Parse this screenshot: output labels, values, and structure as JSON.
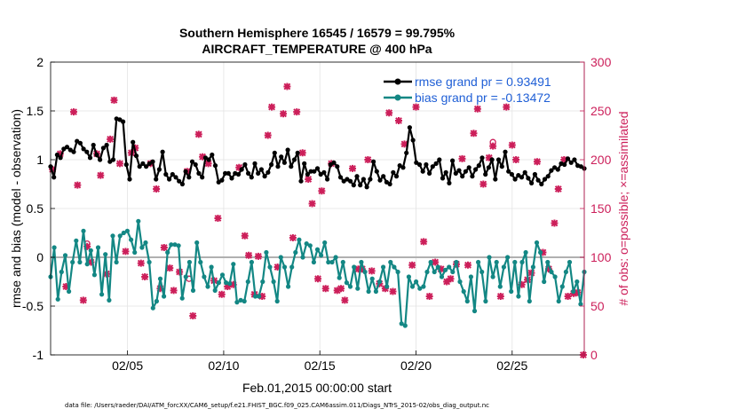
{
  "chart_data": {
    "type": "line",
    "title_line1": "Southern Hemisphere 16545 / 16579 = 99.795%",
    "title_line2": "AIRCRAFT_TEMPERATURE @ 400 hPa",
    "xlabel": "Feb.01,2015 00:00:00 start",
    "ylabel_left": "rmse and bias (model - observation)",
    "ylabel_right": "# of obs: o=possible; ×=assimilated",
    "xlim": [
      1,
      28.75
    ],
    "ylim_left": [
      -1,
      2
    ],
    "ylim_right": [
      0,
      300
    ],
    "x_ticks": [
      {
        "x": 5,
        "label": "02/05"
      },
      {
        "x": 10,
        "label": "02/10"
      },
      {
        "x": 15,
        "label": "02/15"
      },
      {
        "x": 20,
        "label": "02/20"
      },
      {
        "x": 25,
        "label": "02/25"
      }
    ],
    "y_ticks_left": [
      {
        "y": 2,
        "label": "2"
      },
      {
        "y": 1.5,
        "label": "1.5"
      },
      {
        "y": 1,
        "label": "1"
      },
      {
        "y": 0.5,
        "label": "0.5"
      },
      {
        "y": 0,
        "label": "0"
      },
      {
        "y": -0.5,
        "label": "-0.5"
      },
      {
        "y": -1,
        "label": "-1"
      }
    ],
    "y_ticks_right": [
      {
        "y": 300,
        "label": "300"
      },
      {
        "y": 250,
        "label": "250"
      },
      {
        "y": 200,
        "label": "200"
      },
      {
        "y": 150,
        "label": "150"
      },
      {
        "y": 100,
        "label": "100"
      },
      {
        "y": 50,
        "label": "50"
      },
      {
        "y": 0,
        "label": "0"
      }
    ],
    "grid": true,
    "legend_position": "top-right",
    "series": [
      {
        "name": "rmse grand pr = 0.93491",
        "color": "#000000",
        "axis": "left",
        "values": [
          0.93,
          0.82,
          1.05,
          1.02,
          1.11,
          1.13,
          1.1,
          1.08,
          1.19,
          1.17,
          1.11,
          1.08,
          1.02,
          1.15,
          1.05,
          1.0,
          1.12,
          1.15,
          0.98,
          1.0,
          1.42,
          1.41,
          1.39,
          0.95,
          0.8,
          1.18,
          1.04,
          0.93,
          0.96,
          0.93,
          0.96,
          0.98,
          0.8,
          0.9,
          1.08,
          0.85,
          0.8,
          0.85,
          0.82,
          0.78,
          0.75,
          0.88,
          0.82,
          0.98,
          0.95,
          0.86,
          0.82,
          1.02,
          1.0,
          1.05,
          0.94,
          0.77,
          0.79,
          0.86,
          0.86,
          0.81,
          0.86,
          0.85,
          0.9,
          0.95,
          0.86,
          0.82,
          0.96,
          0.86,
          0.9,
          0.83,
          0.87,
          0.95,
          1.07,
          0.93,
          1.03,
          0.97,
          1.1,
          0.93,
          1.0,
          1.07,
          0.78,
          0.96,
          0.85,
          0.88,
          0.88,
          0.91,
          0.85,
          0.87,
          0.8,
          0.95,
          0.97,
          0.93,
          0.82,
          0.78,
          0.8,
          0.78,
          0.74,
          0.83,
          0.74,
          0.8,
          0.72,
          0.8,
          0.98,
          0.88,
          0.79,
          0.83,
          0.77,
          0.75,
          0.87,
          0.83,
          0.94,
          0.92,
          1.07,
          1.33,
          1.2,
          0.97,
          0.95,
          0.88,
          0.95,
          0.86,
          0.93,
          0.96,
          1.0,
          0.81,
          0.87,
          0.76,
          0.99,
          0.86,
          0.89,
          0.83,
          0.88,
          0.92,
          0.83,
          0.9,
          0.94,
          1.02,
          0.85,
          0.92,
          1.0,
          0.8,
          1.0,
          0.93,
          1.08,
          0.88,
          0.85,
          0.8,
          0.84,
          0.82,
          0.87,
          0.81,
          0.76,
          0.85,
          0.79,
          0.75,
          0.8,
          0.83,
          0.89,
          0.92,
          0.9,
          0.96,
          0.95,
          1.01,
          0.97,
          1.0,
          0.94,
          0.93,
          0.91
        ]
      },
      {
        "name": "bias grand pr = -0.13472",
        "color": "#138784",
        "axis": "left",
        "values": [
          -0.2,
          0.1,
          -0.43,
          -0.15,
          0.02,
          -0.35,
          -0.05,
          0.17,
          -0.05,
          0.27,
          -0.07,
          0.07,
          -0.18,
          0.1,
          -0.38,
          0.03,
          -0.44,
          0.22,
          -0.05,
          0.22,
          0.25,
          0.27,
          0.18,
          0.05,
          0.37,
          0.1,
          0.15,
          -0.05,
          -0.52,
          -0.45,
          -0.22,
          -0.4,
          0.05,
          0.13,
          0.13,
          0.12,
          -0.42,
          -0.2,
          -0.05,
          -0.34,
          0.15,
          -0.05,
          -0.2,
          -0.3,
          -0.1,
          -0.34,
          -0.26,
          -0.18,
          -0.26,
          -0.27,
          -0.07,
          -0.46,
          -0.44,
          -0.45,
          -0.25,
          -0.05,
          -0.4,
          -0.4,
          -0.25,
          0.05,
          -0.1,
          -0.25,
          -0.45,
          0.0,
          -0.1,
          -0.3,
          -0.1,
          0.05,
          0.18,
          0.0,
          0.14,
          0.12,
          -0.05,
          0.08,
          0.02,
          0.15,
          -0.05,
          -0.05,
          0.0,
          -0.21,
          -0.05,
          -0.26,
          -0.3,
          -0.1,
          -0.32,
          -0.05,
          -0.15,
          -0.35,
          -0.22,
          -0.35,
          -0.25,
          -0.1,
          -0.3,
          -0.05,
          -0.1,
          -0.15,
          -0.68,
          -0.7,
          -0.2,
          -0.3,
          -0.25,
          -0.32,
          -0.3,
          -0.15,
          -0.05,
          -0.15,
          -0.1,
          -0.2,
          -0.13,
          -0.1,
          -0.15,
          -0.05,
          -0.25,
          -0.35,
          -0.45,
          -0.2,
          -0.55,
          -0.05,
          -0.15,
          -0.45,
          0.0,
          -0.2,
          -0.05,
          -0.3,
          -0.1,
          0.0,
          -0.35,
          -0.05,
          -0.4,
          -0.05,
          0.05,
          -0.45,
          -0.1,
          0.15,
          0.05,
          -0.25,
          -0.05,
          -0.15,
          -0.2,
          -0.45,
          -0.3,
          -0.15,
          -0.05,
          -0.35,
          -0.25,
          -0.48,
          -0.15
        ]
      }
    ],
    "obs_assimilated": [
      {
        "x": 1.1,
        "y": 190
      },
      {
        "x": 1.5,
        "y": 206
      },
      {
        "x": 1.8,
        "y": 70
      },
      {
        "x": 2.2,
        "y": 249
      },
      {
        "x": 2.4,
        "y": 174
      },
      {
        "x": 2.7,
        "y": 56
      },
      {
        "x": 2.9,
        "y": 111
      },
      {
        "x": 3.1,
        "y": 95
      },
      {
        "x": 3.4,
        "y": 206
      },
      {
        "x": 3.6,
        "y": 184
      },
      {
        "x": 3.9,
        "y": 83
      },
      {
        "x": 4.1,
        "y": 221
      },
      {
        "x": 4.3,
        "y": 261
      },
      {
        "x": 4.6,
        "y": 196
      },
      {
        "x": 4.9,
        "y": 106
      },
      {
        "x": 5.2,
        "y": 207
      },
      {
        "x": 5.4,
        "y": 212
      },
      {
        "x": 5.7,
        "y": 94
      },
      {
        "x": 5.9,
        "y": 80
      },
      {
        "x": 6.2,
        "y": 196
      },
      {
        "x": 6.5,
        "y": 170
      },
      {
        "x": 6.7,
        "y": 68
      },
      {
        "x": 6.9,
        "y": 110
      },
      {
        "x": 7.2,
        "y": 89
      },
      {
        "x": 7.4,
        "y": 66
      },
      {
        "x": 7.7,
        "y": 85
      },
      {
        "x": 8.1,
        "y": 188
      },
      {
        "x": 8.4,
        "y": 40
      },
      {
        "x": 8.7,
        "y": 226
      },
      {
        "x": 8.9,
        "y": 203
      },
      {
        "x": 9.2,
        "y": 196
      },
      {
        "x": 9.5,
        "y": 76
      },
      {
        "x": 9.7,
        "y": 140
      },
      {
        "x": 9.9,
        "y": 62
      },
      {
        "x": 10.2,
        "y": 70
      },
      {
        "x": 10.5,
        "y": 72
      },
      {
        "x": 10.8,
        "y": 192
      },
      {
        "x": 11.1,
        "y": 122
      },
      {
        "x": 11.3,
        "y": 102
      },
      {
        "x": 11.6,
        "y": 62
      },
      {
        "x": 11.8,
        "y": 101
      },
      {
        "x": 12.0,
        "y": 60
      },
      {
        "x": 12.3,
        "y": 225
      },
      {
        "x": 12.5,
        "y": 254
      },
      {
        "x": 12.8,
        "y": 90
      },
      {
        "x": 13.1,
        "y": 247
      },
      {
        "x": 13.3,
        "y": 275
      },
      {
        "x": 13.6,
        "y": 120
      },
      {
        "x": 13.8,
        "y": 249
      },
      {
        "x": 14.1,
        "y": 207
      },
      {
        "x": 14.4,
        "y": 180
      },
      {
        "x": 14.6,
        "y": 155
      },
      {
        "x": 14.9,
        "y": 78
      },
      {
        "x": 15.1,
        "y": 168
      },
      {
        "x": 15.3,
        "y": 68
      },
      {
        "x": 15.6,
        "y": 196
      },
      {
        "x": 15.9,
        "y": 66
      },
      {
        "x": 16.1,
        "y": 68
      },
      {
        "x": 16.3,
        "y": 56
      },
      {
        "x": 16.7,
        "y": 191
      },
      {
        "x": 17.0,
        "y": 88
      },
      {
        "x": 17.2,
        "y": 88
      },
      {
        "x": 17.5,
        "y": 200
      },
      {
        "x": 17.7,
        "y": 86
      },
      {
        "x": 18.1,
        "y": 73
      },
      {
        "x": 18.4,
        "y": 68
      },
      {
        "x": 18.6,
        "y": 248
      },
      {
        "x": 18.8,
        "y": 65
      },
      {
        "x": 19.1,
        "y": 240
      },
      {
        "x": 19.4,
        "y": 216
      },
      {
        "x": 19.8,
        "y": 92
      },
      {
        "x": 20.0,
        "y": 254
      },
      {
        "x": 20.4,
        "y": 116
      },
      {
        "x": 20.7,
        "y": 60
      },
      {
        "x": 21.0,
        "y": 95
      },
      {
        "x": 21.3,
        "y": 88
      },
      {
        "x": 21.6,
        "y": 75
      },
      {
        "x": 21.8,
        "y": 78
      },
      {
        "x": 22.1,
        "y": 93
      },
      {
        "x": 22.4,
        "y": 201
      },
      {
        "x": 22.7,
        "y": 92
      },
      {
        "x": 23.0,
        "y": 227
      },
      {
        "x": 23.2,
        "y": 252
      },
      {
        "x": 23.5,
        "y": 175
      },
      {
        "x": 23.8,
        "y": 202
      },
      {
        "x": 24.0,
        "y": 214
      },
      {
        "x": 24.4,
        "y": 60
      },
      {
        "x": 24.7,
        "y": 254
      },
      {
        "x": 25.0,
        "y": 215
      },
      {
        "x": 25.2,
        "y": 200
      },
      {
        "x": 25.5,
        "y": 72
      },
      {
        "x": 25.8,
        "y": 77
      },
      {
        "x": 26.0,
        "y": 84
      },
      {
        "x": 26.3,
        "y": 198
      },
      {
        "x": 26.6,
        "y": 105
      },
      {
        "x": 26.9,
        "y": 88
      },
      {
        "x": 27.2,
        "y": 135
      },
      {
        "x": 27.4,
        "y": 170
      },
      {
        "x": 27.7,
        "y": 200
      },
      {
        "x": 27.9,
        "y": 60
      },
      {
        "x": 28.2,
        "y": 63
      },
      {
        "x": 28.4,
        "y": 64
      },
      {
        "x": 28.7,
        "y": 0
      }
    ],
    "obs_possible": [
      {
        "x": 2.9,
        "y": 114
      },
      {
        "x": 8.2,
        "y": 78
      },
      {
        "x": 24.0,
        "y": 218
      }
    ],
    "obs_marker_color": "#cc1f5a",
    "zero_line_color": "#b0b0b0"
  },
  "legend": {
    "rmse_label": "rmse grand pr = 0.93491",
    "bias_label": "bias grand pr = -0.13472"
  },
  "footer": "data file: /Users/raeder/DAI/ATM_forcXX/CAM6_setup/f.e21.FHIST_BGC.f09_025.CAM6assim.011/Diags_NTrS_2015-02/obs_diag_output.nc"
}
